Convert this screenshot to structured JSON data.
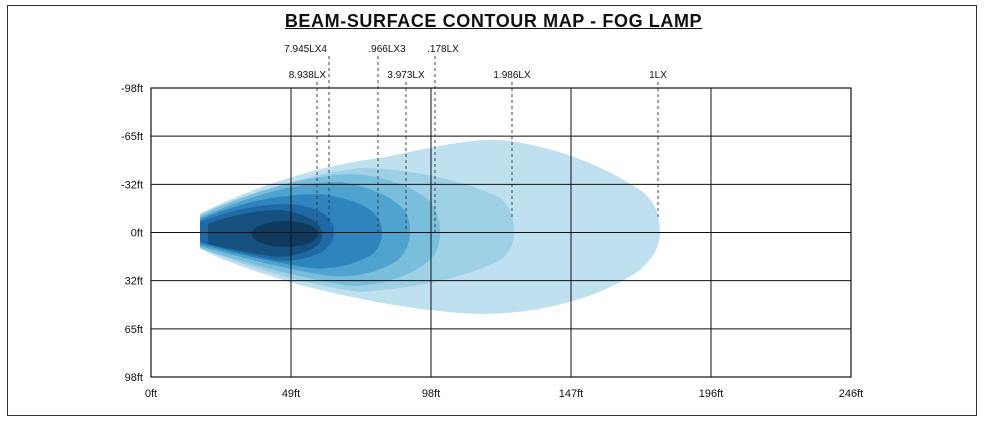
{
  "chart_data": {
    "type": "area",
    "title": "BEAM-SURFACE CONTOUR MAP - FOG LAMP",
    "x_ticks": [
      "0ft",
      "49ft",
      "98ft",
      "147ft",
      "196ft",
      "246ft"
    ],
    "y_ticks": [
      "-98ft",
      "-65ft",
      "-32ft",
      "0ft",
      "32ft",
      "65ft",
      "98ft"
    ],
    "xlim": [
      0,
      246
    ],
    "ylim": [
      -98,
      98
    ],
    "grid": true,
    "contours": [
      {
        "label": "1LX",
        "x_end": 178,
        "color": "#bfe0ee"
      },
      {
        "label": "1.986LX",
        "x_end": 126,
        "color": "#9ed1e6"
      },
      {
        "label": ".178LX",
        "x_end": 99,
        "color": "#79bfdc"
      },
      {
        "label": "3.973LX",
        "x_end": 89,
        "color": "#4fa4cf"
      },
      {
        "label": ".966LX3",
        "x_end": 80,
        "color": "#2e84bd"
      },
      {
        "label": "7.945LX4",
        "x_end": 62,
        "color": "#1f6aa5"
      },
      {
        "label": "8.938LX",
        "x_end": 58,
        "color": "#15507f"
      }
    ],
    "core_color": "#0f3a5e"
  }
}
